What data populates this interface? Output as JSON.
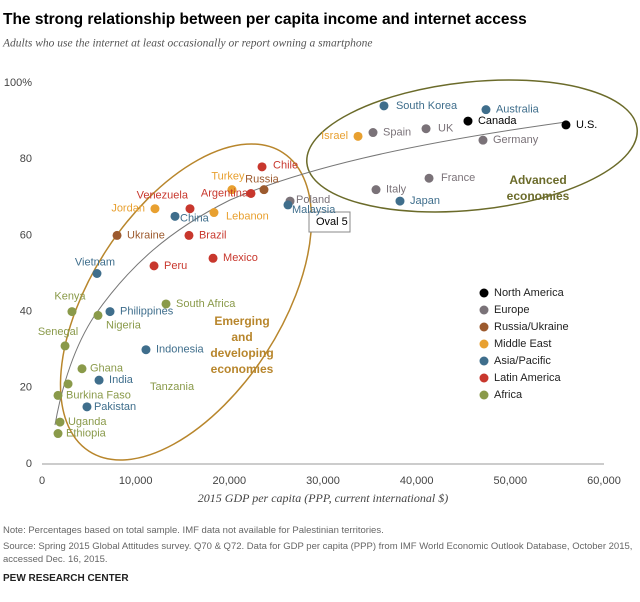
{
  "chart_data": {
    "type": "scatter",
    "title": "The strong relationship between per capita income and internet access",
    "subtitle": "Adults who use the internet at least occasionally or report owning a smartphone",
    "xlabel": "2015 GDP per capita (PPP, current international $)",
    "xlim": [
      0,
      60000
    ],
    "xticks": [
      0,
      {
        "value": 10000,
        "label": "10,000"
      },
      {
        "value": 20000,
        "label": "20,000"
      },
      {
        "value": 30000,
        "label": "30,000"
      },
      {
        "value": 40000,
        "label": "40,000"
      },
      {
        "value": 50000,
        "label": "50,000"
      },
      {
        "value": 60000,
        "label": "60,000"
      }
    ],
    "ylim": [
      0,
      100
    ],
    "yticks": [
      0,
      20,
      40,
      60,
      80,
      {
        "value": 100,
        "label": "100%"
      }
    ],
    "series": [
      {
        "name": "North America",
        "color": "#000000",
        "labels": [
          "Canada",
          "U.S."
        ],
        "x": [
          45480,
          55940
        ],
        "values": [
          90,
          89
        ]
      },
      {
        "name": "Europe",
        "color": "#7a7278",
        "labels": [
          "Spain",
          "UK",
          "Germany",
          "Italy",
          "France",
          "Poland"
        ],
        "x": [
          35340,
          41000,
          47080,
          35660,
          41320,
          26480
        ],
        "values": [
          87,
          88,
          85,
          72,
          75,
          69
        ]
      },
      {
        "name": "Russia/Ukraine",
        "color": "#9c5a2e",
        "labels": [
          "Russia",
          "Ukraine"
        ],
        "x": [
          23700,
          8010
        ],
        "values": [
          72,
          60
        ]
      },
      {
        "name": "Middle East",
        "color": "#e8a030",
        "labels": [
          "Israel",
          "Turkey",
          "Jordan",
          "Lebanon"
        ],
        "x": [
          33740,
          20280,
          12060,
          18360
        ],
        "values": [
          86,
          72,
          67,
          66
        ]
      },
      {
        "name": "Asia/Pacific",
        "color": "#3f6e8c",
        "labels": [
          "South Korea",
          "Australia",
          "Japan",
          "Malaysia",
          "China",
          "Vietnam",
          "Philippines",
          "Indonesia",
          "India",
          "Pakistan"
        ],
        "x": [
          36510,
          47400,
          38220,
          26260,
          14200,
          5870,
          7260,
          11100,
          6090,
          4800
        ],
        "values": [
          94,
          93,
          69,
          68,
          65,
          50,
          40,
          30,
          22,
          15
        ]
      },
      {
        "name": "Latin America",
        "color": "#c8372d",
        "labels": [
          "Chile",
          "Argentina",
          "Venezuela",
          "Brazil",
          "Peru",
          "Mexico"
        ],
        "x": [
          23490,
          22310,
          15800,
          15690,
          11960,
          18260
        ],
        "values": [
          78,
          71,
          67,
          60,
          52,
          54
        ]
      },
      {
        "name": "Africa",
        "color": "#8a9a4a",
        "labels": [
          "South Africa",
          "Kenya",
          "Nigeria",
          "Senegal",
          "Ghana",
          "Tanzania",
          "Burkina Faso",
          "Uganda",
          "Ethiopia"
        ],
        "x": [
          13240,
          3200,
          5980,
          2460,
          4270,
          2780,
          1710,
          1920,
          1710
        ],
        "values": [
          42,
          40,
          39,
          31,
          25,
          21,
          18,
          11,
          8
        ]
      }
    ],
    "annotations": [
      [
        "Advanced",
        "economies"
      ],
      [
        "Emerging",
        "and",
        "developing",
        "economies"
      ],
      "Oval 5"
    ],
    "note": "Note: Percentages based on total sample. IMF data not available for Palestinian territories.",
    "source": "Source: Spring 2015 Global Attitudes survey. Q70 & Q72. Data for GDP per capita (PPP) from IMF World Economic Outlook Database, October 2015, accessed Dec. 16, 2015.",
    "footer": "PEW RESEARCH CENTER"
  }
}
